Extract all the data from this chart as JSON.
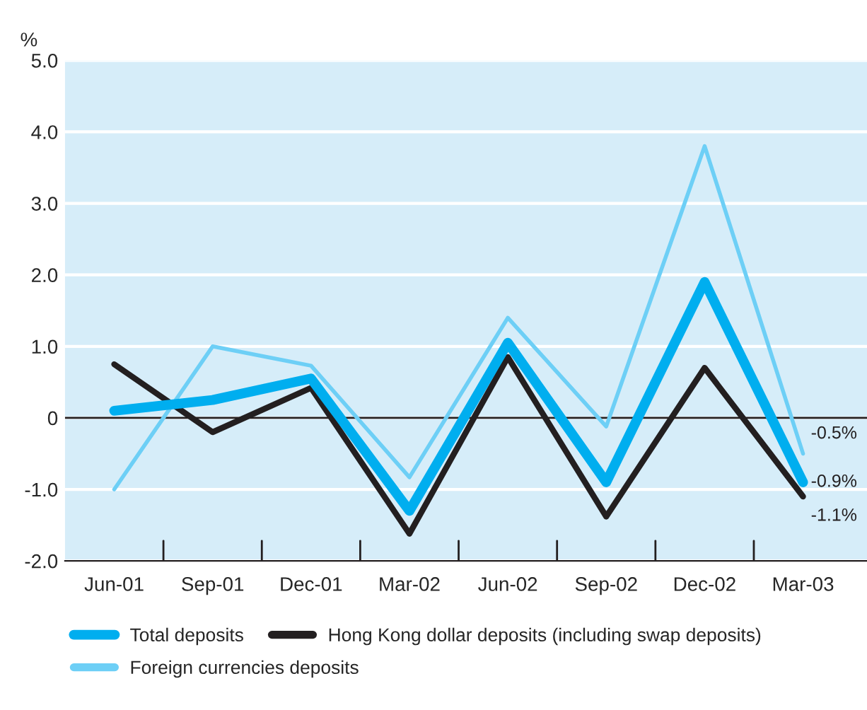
{
  "chart_data": {
    "type": "line",
    "ylabel": "%",
    "categories": [
      "Jun-01",
      "Sep-01",
      "Dec-01",
      "Mar-02",
      "Jun-02",
      "Sep-02",
      "Dec-02",
      "Mar-03"
    ],
    "series": [
      {
        "name": "Total deposits",
        "color": "#00aeef",
        "values": [
          0.1,
          0.25,
          0.55,
          -1.3,
          1.05,
          -0.9,
          1.9,
          -0.9
        ],
        "value_labels": [
          null,
          null,
          null,
          null,
          null,
          null,
          null,
          "-0.9%"
        ]
      },
      {
        "name": "Hong Kong dollar deposits (including swap deposits)",
        "color": "#231f20",
        "values": [
          0.75,
          -0.2,
          0.42,
          -1.62,
          0.85,
          -1.38,
          0.7,
          -1.1
        ],
        "value_labels": [
          null,
          null,
          null,
          null,
          null,
          null,
          null,
          "-1.1%"
        ]
      },
      {
        "name": "Foreign currencies deposits",
        "color": "#6dcff6",
        "values": [
          -1.0,
          1.0,
          0.73,
          -0.83,
          1.4,
          -0.12,
          3.8,
          -0.5
        ],
        "value_labels": [
          null,
          null,
          null,
          null,
          null,
          null,
          null,
          "-0.5%"
        ]
      }
    ],
    "ylim": [
      -2,
      5
    ],
    "yticks": [
      {
        "value": -2,
        "label": "-2.0"
      },
      {
        "value": -1,
        "label": "-1.0"
      },
      0,
      {
        "value": 1,
        "label": "1.0"
      },
      {
        "value": 2,
        "label": "2.0"
      },
      {
        "value": 3,
        "label": "3.0"
      },
      {
        "value": 4,
        "label": "4.0"
      },
      {
        "value": 5,
        "label": "5.0"
      }
    ],
    "ref_lines": [
      {
        "axis": "y",
        "value": 0,
        "label": null,
        "color": "#231f20"
      }
    ],
    "grid": "y",
    "legend": "bottom",
    "marker": "none",
    "line_style": "solid"
  }
}
